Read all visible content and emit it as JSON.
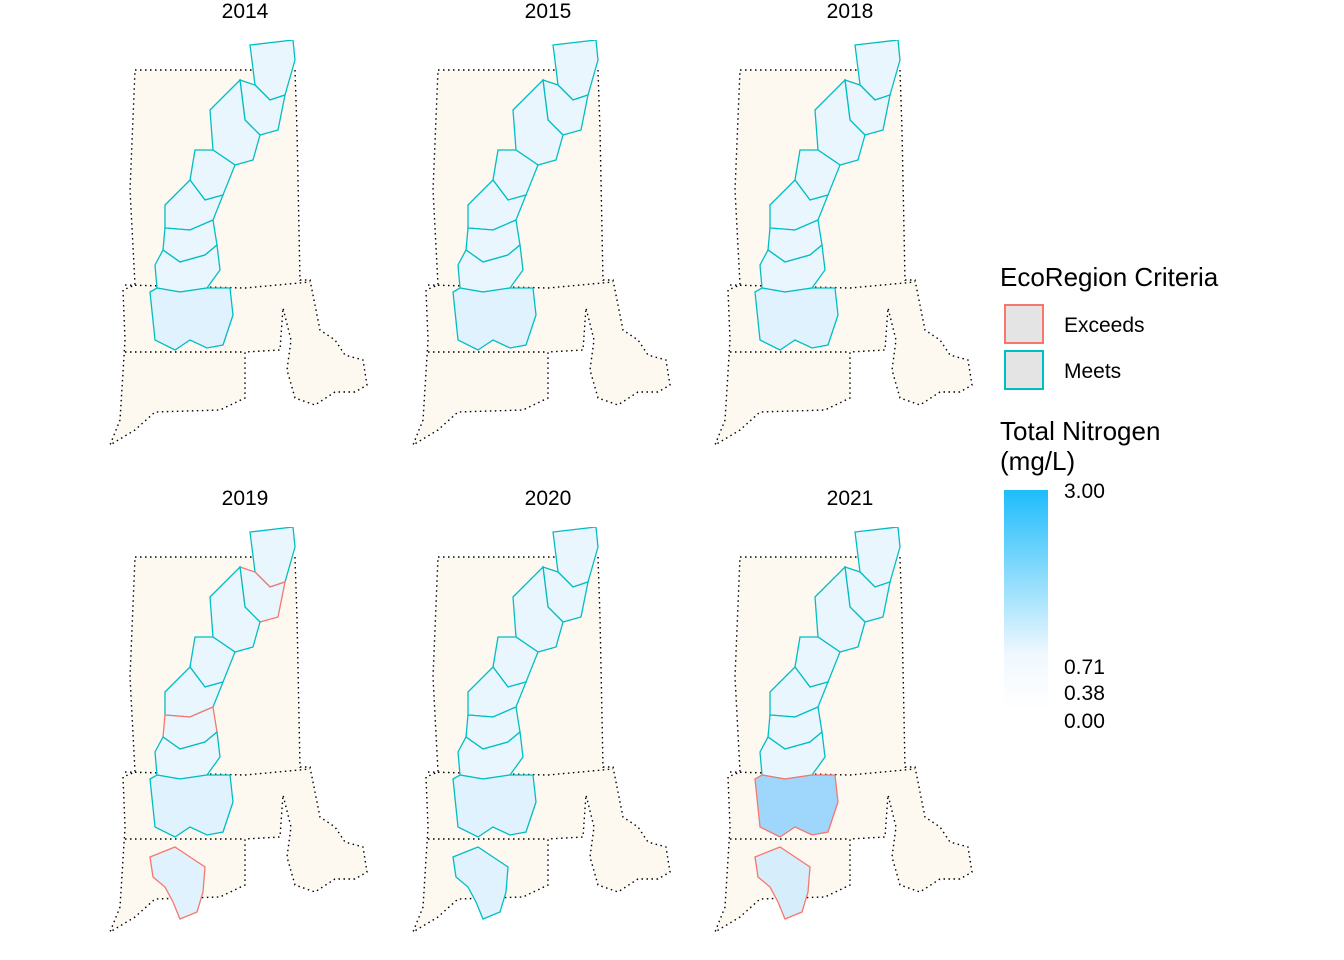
{
  "panels": [
    {
      "year": "2014",
      "exceed_outlines": [],
      "filled": {}
    },
    {
      "year": "2015",
      "exceed_outlines": [],
      "filled": {}
    },
    {
      "year": "2018",
      "exceed_outlines": [],
      "filled": {}
    },
    {
      "year": "2019",
      "exceed_outlines": [
        "u2",
        "l2",
        "l6"
      ],
      "filled": {}
    },
    {
      "year": "2020",
      "exceed_outlines": [],
      "filled": {}
    },
    {
      "year": "2021",
      "exceed_outlines": [
        "l5",
        "l6"
      ],
      "filled": {
        "l5": "#9ed7fb",
        "l6": "#d6eefc"
      }
    }
  ],
  "legend": {
    "criteria_title": "EcoRegion Criteria",
    "criteria": [
      {
        "label": "Exceeds",
        "color": "#f8766d"
      },
      {
        "label": "Meets",
        "color": "#00bfc4"
      }
    ],
    "nitrogen_title_line1": "Total Nitrogen",
    "nitrogen_title_line2": "(mg/L)",
    "ticks": [
      "3.00",
      "0.71",
      "0.38",
      "0.00"
    ],
    "colorbar": {
      "low": "#ffffff",
      "high": "#1ebcfb",
      "min": 0,
      "max": 3
    }
  },
  "colors": {
    "state_fill": "#fdf8f0",
    "meets": "#00bfc4",
    "exceeds": "#f8766d",
    "watershed_fill": "#eaf6fd",
    "watershed_fill_lower": "#e0f2fd"
  }
}
